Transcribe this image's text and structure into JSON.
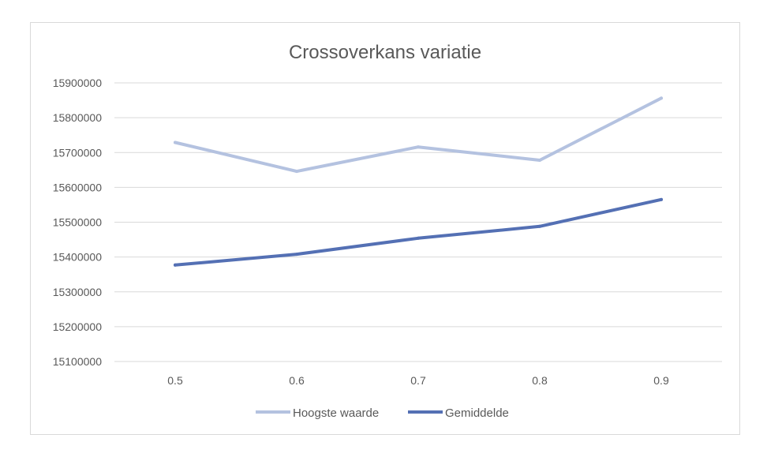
{
  "chart_data": {
    "type": "line",
    "title": "Crossoverkans variatie",
    "xlabel": "",
    "ylabel": "",
    "categories": [
      "0.5",
      "0.6",
      "0.7",
      "0.8",
      "0.9"
    ],
    "ylim": [
      15100000,
      15900000
    ],
    "yticks": [
      "15100000",
      "15200000",
      "15300000",
      "15400000",
      "15500000",
      "15600000",
      "15700000",
      "15800000",
      "15900000"
    ],
    "grid": true,
    "legend_position": "bottom",
    "series": [
      {
        "name": "Hoogste waarde",
        "color": "#b4c2e0",
        "values": [
          15729000,
          15646000,
          15716000,
          15678000,
          15856000
        ]
      },
      {
        "name": "Gemiddelde",
        "color": "#5470b4",
        "values": [
          15377000,
          15408000,
          15454000,
          15488000,
          15565000
        ]
      }
    ]
  }
}
